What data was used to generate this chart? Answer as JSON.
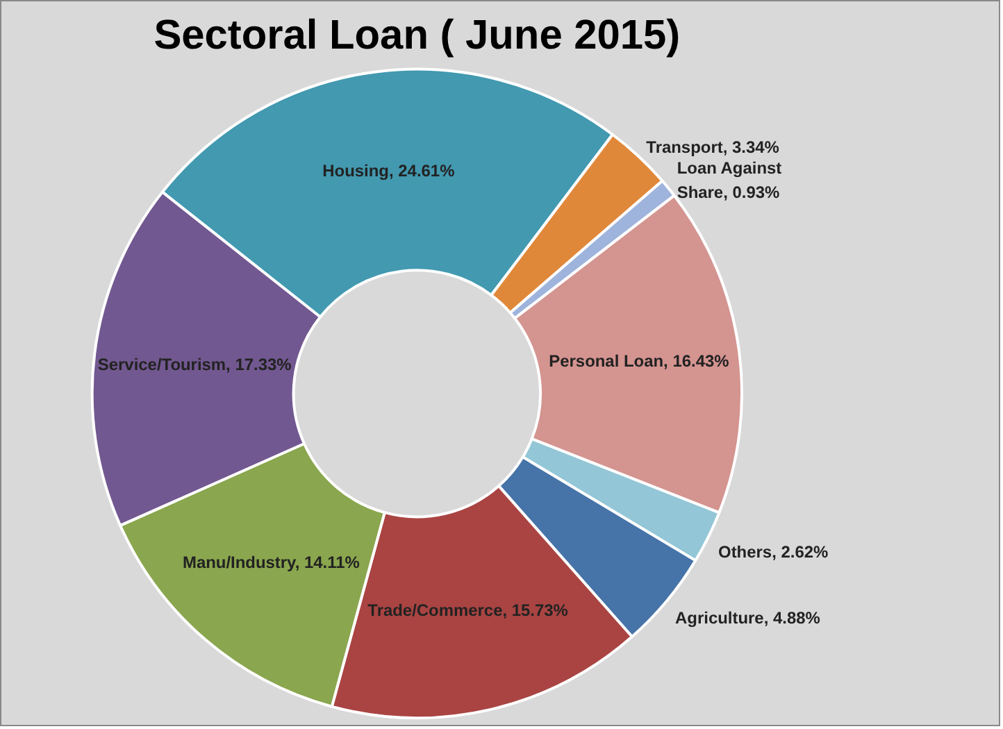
{
  "chart_data": {
    "type": "donut",
    "title": "Sectoral Loan ( June 2015)",
    "categories": [
      "Housing",
      "Transport",
      "Loan Against Share",
      "Personal Loan",
      "Others",
      "Agriculture",
      "Trade/Commerce",
      "Manu/Industry",
      "Service/Tourism"
    ],
    "values": [
      24.61,
      3.34,
      0.93,
      16.43,
      2.62,
      4.88,
      15.73,
      14.11,
      17.33
    ],
    "value_labels": [
      "24.61%",
      "3.34%",
      "0.93%",
      "16.43%",
      "2.62%",
      "4.88%",
      "15.73%",
      "14.11%",
      "17.33%"
    ],
    "colors": [
      "#4299b0",
      "#e0883a",
      "#9fb4dc",
      "#d49490",
      "#93c6d6",
      "#4673a8",
      "#a94442",
      "#8aa64e",
      "#725890"
    ],
    "legend": false
  }
}
